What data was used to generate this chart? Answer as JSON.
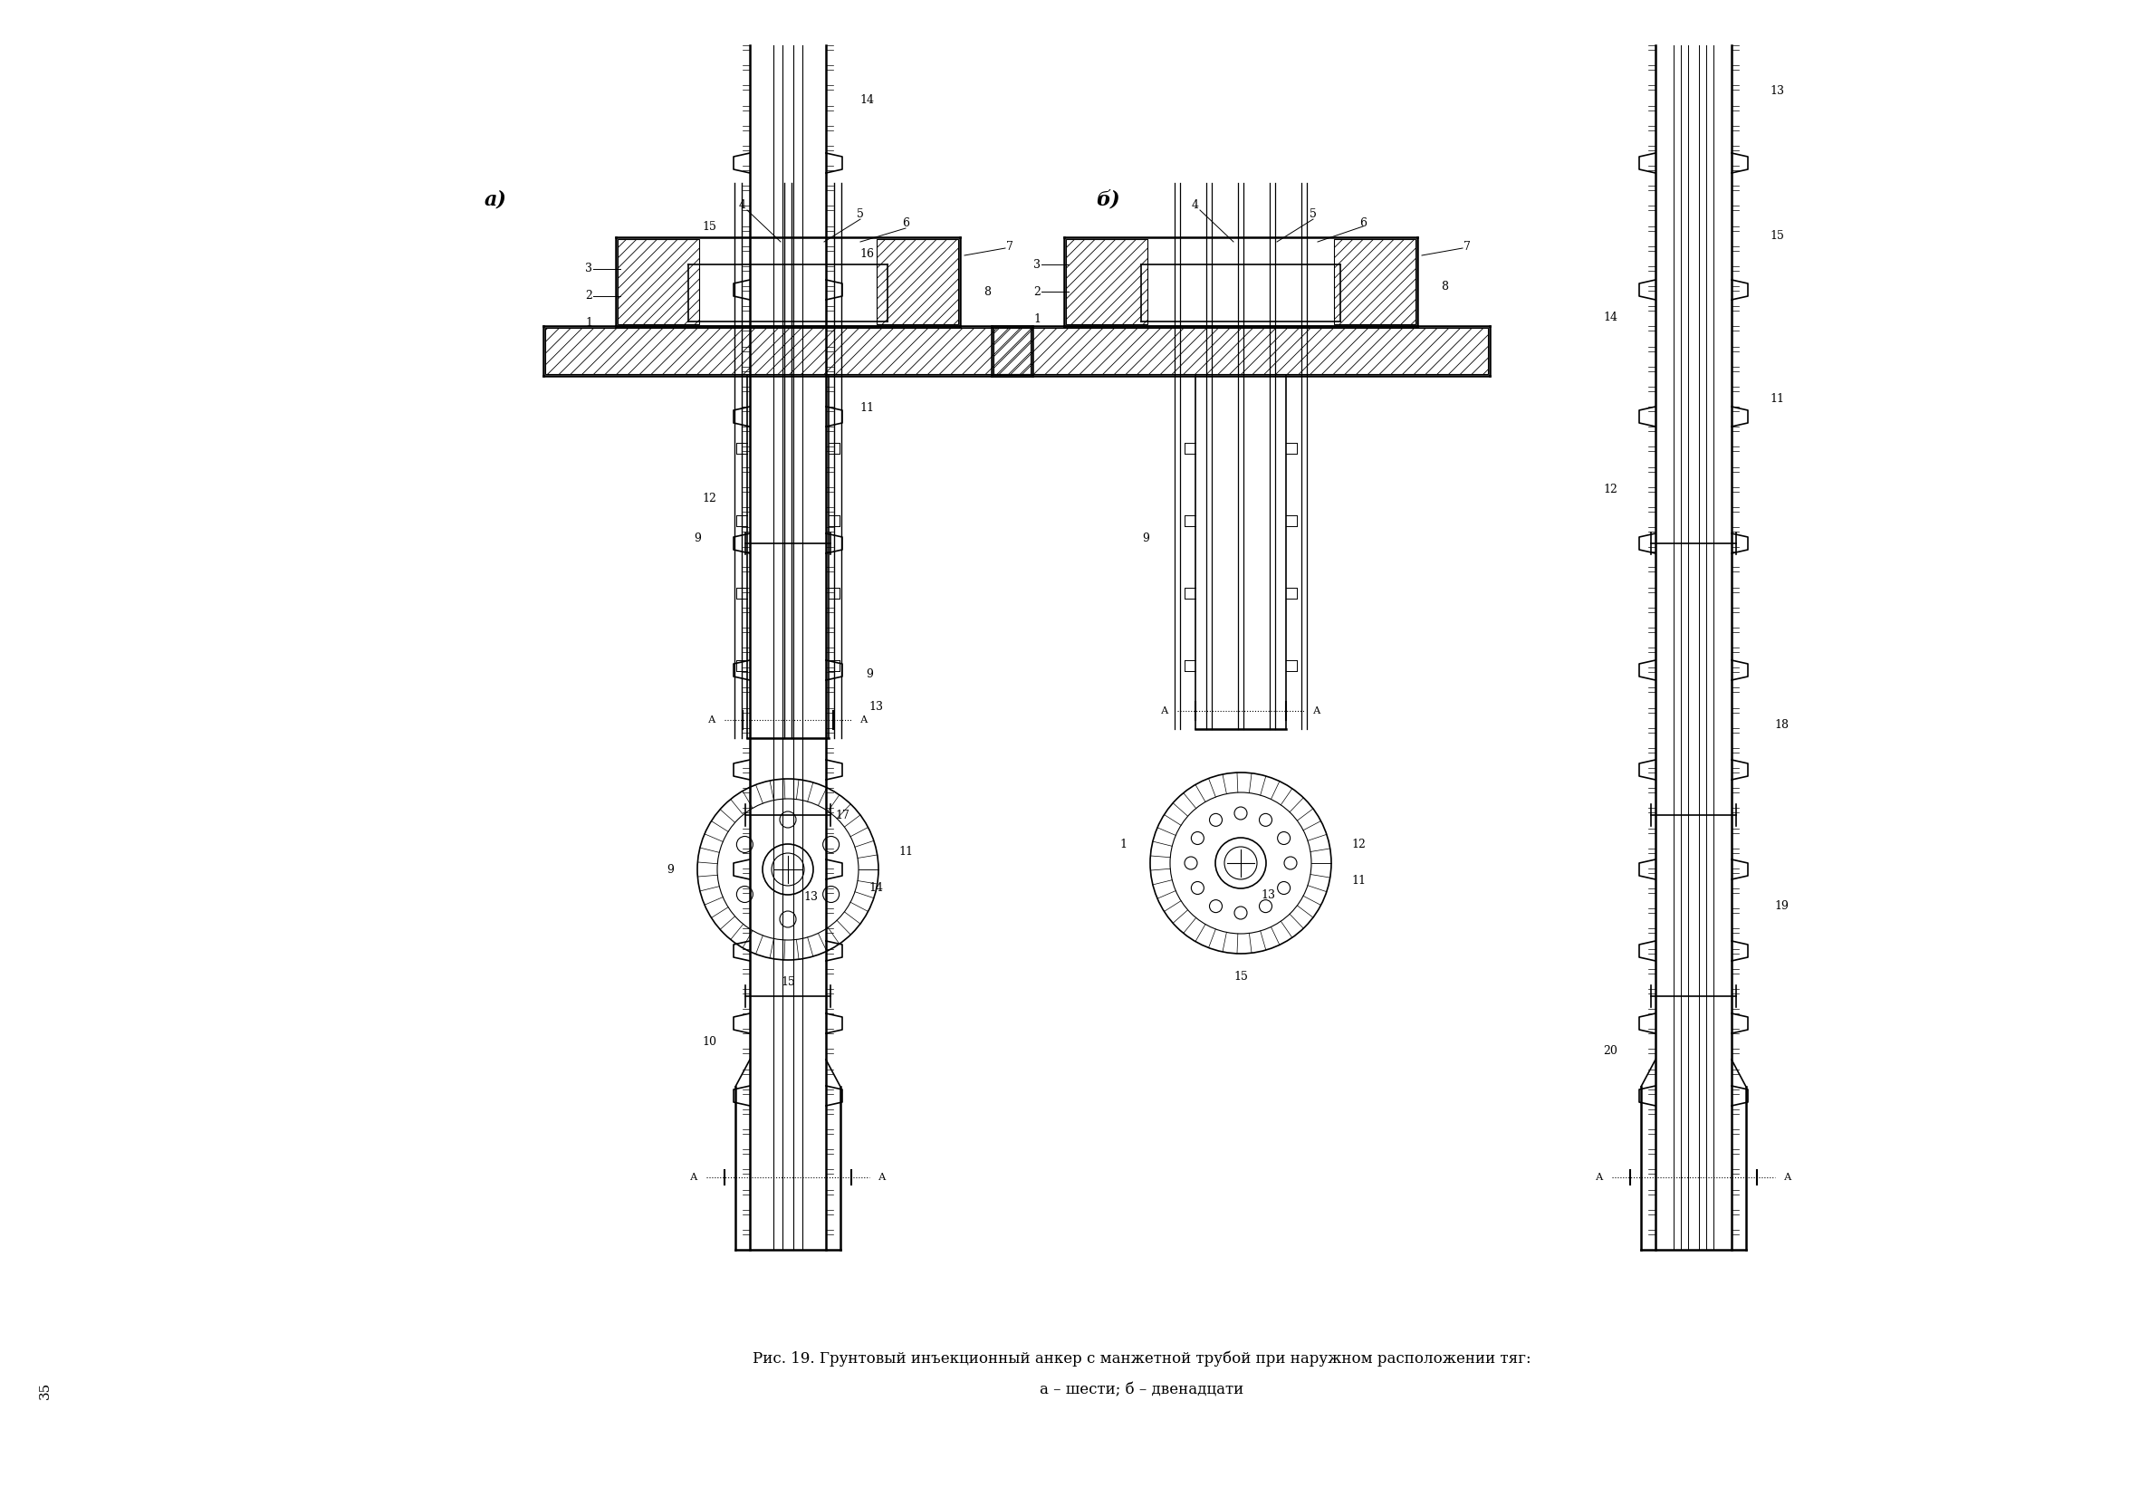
{
  "title_line1": "Рис. 19. Грунтовый инъекционный анкер с манжетной трубой при наружном расположении тяг:",
  "title_line2": "а – шести; б – двенадцати",
  "label_a": "а)",
  "label_b": "б)",
  "page_number": "35",
  "bg": "#ffffff"
}
